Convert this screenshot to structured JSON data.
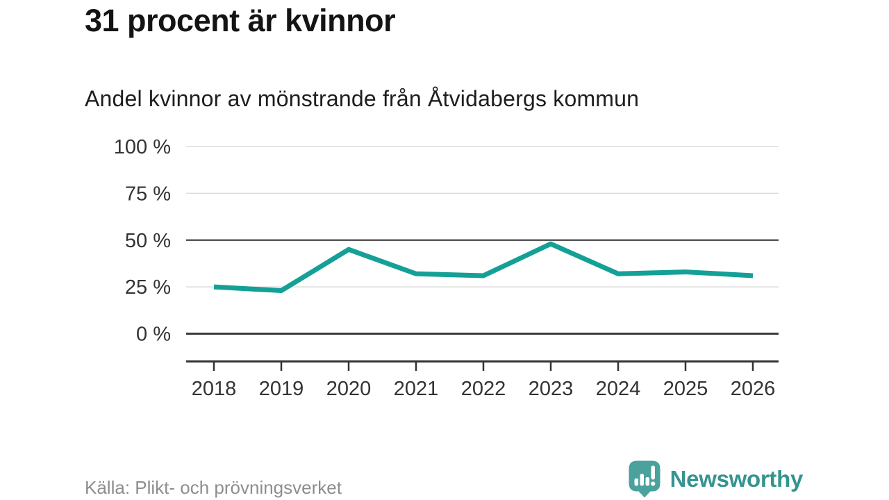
{
  "title": "31 procent är kvinnor",
  "subtitle": "Andel kvinnor av mönstrande från Åtvidabergs kommun",
  "source": "Källa: Plikt- och prövningsverket",
  "branding": {
    "name": "Newsworthy",
    "icon": "bar-chart-speech-bubble",
    "icon_color": "#4ba29d",
    "text_color": "#35948f"
  },
  "colors": {
    "line": "#14a096",
    "grid_light": "#dcdcdc",
    "grid_mid": "#595959",
    "grid_dark": "#3a3a3a",
    "axis": "#333333",
    "tick_text": "#333333",
    "title_text": "#141414",
    "source_text": "#8e8e8e"
  },
  "chart_data": {
    "type": "line",
    "title": "31 procent är kvinnor",
    "subtitle": "Andel kvinnor av mönstrande från Åtvidabergs kommun",
    "x": [
      2018,
      2019,
      2020,
      2021,
      2022,
      2023,
      2024,
      2025,
      2026
    ],
    "series": [
      {
        "name": "Andel kvinnor av mönstrande",
        "values": [
          25,
          23,
          45,
          32,
          31,
          48,
          32,
          33,
          31
        ]
      }
    ],
    "unit": "%",
    "xlabel": "",
    "ylabel": "",
    "ylim": [
      0,
      100
    ],
    "yticks": [
      0,
      25,
      50,
      75,
      100
    ],
    "ytick_format": "{v} %",
    "grid": "horizontal",
    "emphasized_gridlines": [
      0,
      50
    ],
    "legend": "none"
  }
}
